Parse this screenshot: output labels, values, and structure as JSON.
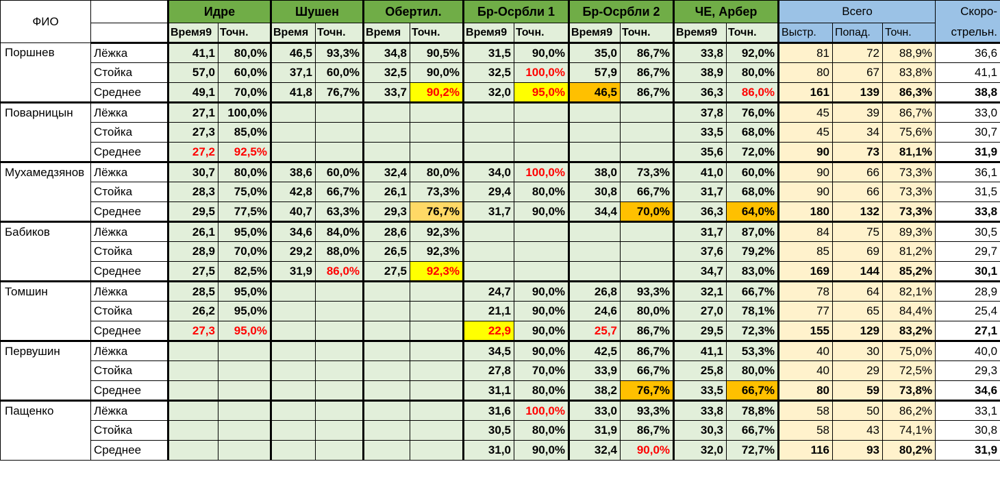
{
  "header": {
    "fio": "ФИО",
    "locations": [
      "Идре",
      "Шушен",
      "Обертил.",
      "Бр-Осрбли 1",
      "Бр-Осрбли 2",
      "ЧЕ, Арбер"
    ],
    "location_sub": [
      "Время9",
      "Точн."
    ],
    "location_sub_variants": [
      [
        "Время9",
        "Точн."
      ],
      [
        "Время",
        "Точн."
      ],
      [
        "Время",
        "Точн."
      ],
      [
        "Время9",
        "Точн."
      ],
      [
        "Время9",
        "Точн."
      ],
      [
        "Время9",
        "Точн."
      ]
    ],
    "total": "Всего",
    "total_sub": [
      "Выстр.",
      "Попад.",
      "Точн."
    ],
    "rate_line1": "Скоро-",
    "rate_line2": "стрельн."
  },
  "colors": {
    "red": "#ff0000",
    "yellow": "#ffff00",
    "orange": "#ffc000",
    "light_orange": "#ffd966",
    "green_cell": "#e2efda",
    "green_header": "#70ad47",
    "blue_header": "#9bc2e6",
    "total_cell": "#fff2cc"
  },
  "athletes": [
    {
      "name": "Поршнев",
      "rows": [
        {
          "type": "Лёжка",
          "cells": [
            "41,1",
            "80,0%",
            "46,5",
            "93,3%",
            "34,8",
            "90,5%",
            "31,5",
            "90,0%",
            "35,0",
            "86,7%",
            "33,8",
            "92,0%"
          ],
          "total": [
            "81",
            "72",
            "88,9%"
          ],
          "rate": "36,6"
        },
        {
          "type": "Стойка",
          "cells": [
            "57,0",
            "60,0%",
            "37,1",
            "60,0%",
            "32,5",
            "90,0%",
            "32,5",
            {
              "v": "100,0%",
              "color": "#ff0000"
            },
            "57,9",
            "86,7%",
            "38,9",
            "80,0%"
          ],
          "total": [
            "80",
            "67",
            "83,8%"
          ],
          "rate": "41,1"
        },
        {
          "type": "Среднее",
          "cells": [
            "49,1",
            "70,0%",
            "41,8",
            "76,7%",
            "33,7",
            {
              "v": "90,2%",
              "color": "#ff0000",
              "fill": "#ffff00"
            },
            "32,0",
            {
              "v": "95,0%",
              "color": "#ff0000",
              "fill": "#ffff00"
            },
            {
              "v": "46,5",
              "fill": "#ffc000"
            },
            "86,7%",
            "36,3",
            {
              "v": "86,0%",
              "color": "#ff0000"
            }
          ],
          "total": [
            "161",
            "139",
            "86,3%"
          ],
          "rate": "38,8"
        }
      ]
    },
    {
      "name": "Поварницын",
      "rows": [
        {
          "type": "Лёжка",
          "cells": [
            "27,1",
            "100,0%",
            "",
            "",
            "",
            "",
            "",
            "",
            "",
            "",
            "37,8",
            "76,0%"
          ],
          "total": [
            "45",
            "39",
            "86,7%"
          ],
          "rate": "33,0"
        },
        {
          "type": "Стойка",
          "cells": [
            "27,3",
            "85,0%",
            "",
            "",
            "",
            "",
            "",
            "",
            "",
            "",
            "33,5",
            "68,0%"
          ],
          "total": [
            "45",
            "34",
            "75,6%"
          ],
          "rate": "30,7"
        },
        {
          "type": "Среднее",
          "cells": [
            {
              "v": "27,2",
              "color": "#ff0000"
            },
            {
              "v": "92,5%",
              "color": "#ff0000"
            },
            "",
            "",
            "",
            "",
            "",
            "",
            "",
            "",
            "35,6",
            "72,0%"
          ],
          "total": [
            "90",
            "73",
            "81,1%"
          ],
          "rate": "31,9"
        }
      ]
    },
    {
      "name": "Мухамедзянов",
      "rows": [
        {
          "type": "Лёжка",
          "cells": [
            "30,7",
            "80,0%",
            "38,6",
            "60,0%",
            "32,4",
            "80,0%",
            "34,0",
            {
              "v": "100,0%",
              "color": "#ff0000"
            },
            "38,0",
            "73,3%",
            "41,0",
            "60,0%"
          ],
          "total": [
            "90",
            "66",
            "73,3%"
          ],
          "rate": "36,1"
        },
        {
          "type": "Стойка",
          "cells": [
            "28,3",
            "75,0%",
            "42,8",
            "66,7%",
            "26,1",
            "73,3%",
            "29,4",
            "80,0%",
            "30,8",
            "66,7%",
            "31,7",
            "68,0%"
          ],
          "total": [
            "90",
            "66",
            "73,3%"
          ],
          "rate": "31,5"
        },
        {
          "type": "Среднее",
          "cells": [
            "29,5",
            "77,5%",
            "40,7",
            "63,3%",
            "29,3",
            {
              "v": "76,7%",
              "fill": "#ffd966"
            },
            "31,7",
            "90,0%",
            "34,4",
            {
              "v": "70,0%",
              "fill": "#ffc000"
            },
            "36,3",
            {
              "v": "64,0%",
              "fill": "#ffc000"
            }
          ],
          "total": [
            "180",
            "132",
            "73,3%"
          ],
          "rate": "33,8"
        }
      ]
    },
    {
      "name": "Бабиков",
      "rows": [
        {
          "type": "Лёжка",
          "cells": [
            "26,1",
            "95,0%",
            "34,6",
            "84,0%",
            "28,6",
            "92,3%",
            "",
            "",
            "",
            "",
            "31,7",
            "87,0%"
          ],
          "total": [
            "84",
            "75",
            "89,3%"
          ],
          "rate": "30,5"
        },
        {
          "type": "Стойка",
          "cells": [
            "28,9",
            "70,0%",
            "29,2",
            "88,0%",
            "26,5",
            "92,3%",
            "",
            "",
            "",
            "",
            "37,6",
            "79,2%"
          ],
          "total": [
            "85",
            "69",
            "81,2%"
          ],
          "rate": "29,7"
        },
        {
          "type": "Среднее",
          "cells": [
            "27,5",
            "82,5%",
            "31,9",
            {
              "v": "86,0%",
              "color": "#ff0000"
            },
            "27,5",
            {
              "v": "92,3%",
              "color": "#ff0000",
              "fill": "#ffff00"
            },
            "",
            "",
            "",
            "",
            "34,7",
            "83,0%"
          ],
          "total": [
            "169",
            "144",
            "85,2%"
          ],
          "rate": "30,1"
        }
      ]
    },
    {
      "name": "Томшин",
      "rows": [
        {
          "type": "Лёжка",
          "cells": [
            "28,5",
            "95,0%",
            "",
            "",
            "",
            "",
            "24,7",
            "90,0%",
            "26,8",
            "93,3%",
            "32,1",
            "66,7%"
          ],
          "total": [
            "78",
            "64",
            "82,1%"
          ],
          "rate": "28,9"
        },
        {
          "type": "Стойка",
          "cells": [
            "26,2",
            "95,0%",
            "",
            "",
            "",
            "",
            "21,1",
            "90,0%",
            "24,6",
            "80,0%",
            "27,0",
            "78,1%"
          ],
          "total": [
            "77",
            "65",
            "84,4%"
          ],
          "rate": "25,4"
        },
        {
          "type": "Среднее",
          "cells": [
            {
              "v": "27,3",
              "color": "#ff0000"
            },
            {
              "v": "95,0%",
              "color": "#ff0000"
            },
            "",
            "",
            "",
            "",
            {
              "v": "22,9",
              "color": "#ff0000",
              "fill": "#ffff00"
            },
            "90,0%",
            {
              "v": "25,7",
              "color": "#ff0000"
            },
            "86,7%",
            "29,5",
            "72,3%"
          ],
          "total": [
            "155",
            "129",
            "83,2%"
          ],
          "rate": "27,1"
        }
      ]
    },
    {
      "name": "Первушин",
      "rows": [
        {
          "type": "Лёжка",
          "cells": [
            "",
            "",
            "",
            "",
            "",
            "",
            "34,5",
            "90,0%",
            "42,5",
            "86,7%",
            "41,1",
            "53,3%"
          ],
          "total": [
            "40",
            "30",
            "75,0%"
          ],
          "rate": "40,0"
        },
        {
          "type": "Стойка",
          "cells": [
            "",
            "",
            "",
            "",
            "",
            "",
            "27,8",
            "70,0%",
            "33,9",
            "66,7%",
            "25,8",
            "80,0%"
          ],
          "total": [
            "40",
            "29",
            "72,5%"
          ],
          "rate": "29,3"
        },
        {
          "type": "Среднее",
          "cells": [
            "",
            "",
            "",
            "",
            "",
            "",
            "31,1",
            "80,0%",
            "38,2",
            {
              "v": "76,7%",
              "fill": "#ffc000"
            },
            "33,5",
            {
              "v": "66,7%",
              "fill": "#ffc000"
            }
          ],
          "total": [
            "80",
            "59",
            "73,8%"
          ],
          "rate": "34,6"
        }
      ]
    },
    {
      "name": "Пащенко",
      "rows": [
        {
          "type": "Лёжка",
          "cells": [
            "",
            "",
            "",
            "",
            "",
            "",
            "31,6",
            {
              "v": "100,0%",
              "color": "#ff0000"
            },
            "33,0",
            "93,3%",
            "33,8",
            "78,8%"
          ],
          "total": [
            "58",
            "50",
            "86,2%"
          ],
          "rate": "33,1"
        },
        {
          "type": "Стойка",
          "cells": [
            "",
            "",
            "",
            "",
            "",
            "",
            "30,5",
            "80,0%",
            "31,9",
            "86,7%",
            "30,3",
            "66,7%"
          ],
          "total": [
            "58",
            "43",
            "74,1%"
          ],
          "rate": "30,8"
        },
        {
          "type": "Среднее",
          "cells": [
            "",
            "",
            "",
            "",
            "",
            "",
            "31,0",
            "90,0%",
            "32,4",
            {
              "v": "90,0%",
              "color": "#ff0000"
            },
            "32,0",
            "72,7%"
          ],
          "total": [
            "116",
            "93",
            "80,2%"
          ],
          "rate": "31,9"
        }
      ]
    }
  ]
}
